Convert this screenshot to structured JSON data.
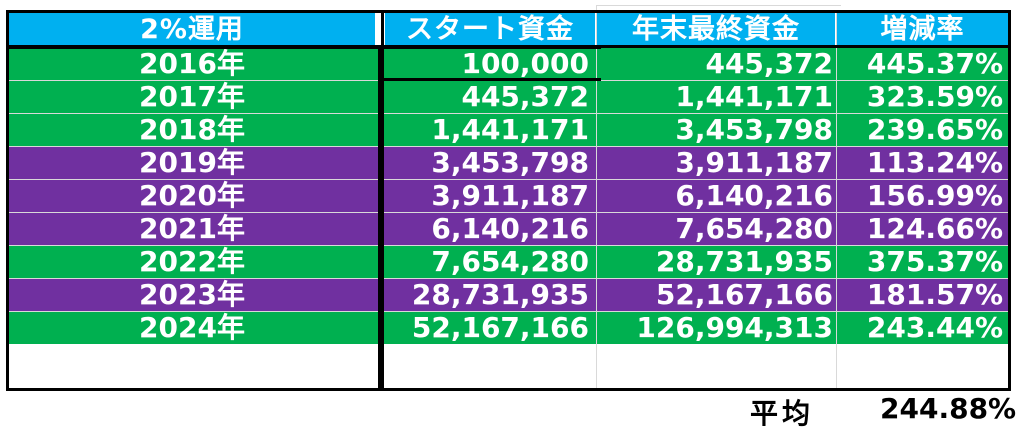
{
  "header": {
    "col_year": "2%運用",
    "col_start": "スタート資金",
    "col_end": "年末最終資金",
    "col_rate": "増減率"
  },
  "rows": [
    {
      "year": "2016年",
      "start": "100,000",
      "end": "445,372",
      "rate": "445.37%",
      "color": "green"
    },
    {
      "year": "2017年",
      "start": "445,372",
      "end": "1,441,171",
      "rate": "323.59%",
      "color": "green"
    },
    {
      "year": "2018年",
      "start": "1,441,171",
      "end": "3,453,798",
      "rate": "239.65%",
      "color": "green"
    },
    {
      "year": "2019年",
      "start": "3,453,798",
      "end": "3,911,187",
      "rate": "113.24%",
      "color": "purple"
    },
    {
      "year": "2020年",
      "start": "3,911,187",
      "end": "6,140,216",
      "rate": "156.99%",
      "color": "purple"
    },
    {
      "year": "2021年",
      "start": "6,140,216",
      "end": "7,654,280",
      "rate": "124.66%",
      "color": "purple"
    },
    {
      "year": "2022年",
      "start": "7,654,280",
      "end": "28,731,935",
      "rate": "375.37%",
      "color": "green"
    },
    {
      "year": "2023年",
      "start": "28,731,935",
      "end": "52,167,166",
      "rate": "181.57%",
      "color": "purple"
    },
    {
      "year": "2024年",
      "start": "52,167,166",
      "end": "126,994,313",
      "rate": "243.44%",
      "color": "green"
    }
  ],
  "summary": {
    "label": "平均",
    "value": "244.88%"
  },
  "colors": {
    "header_bg": "#00b0f0",
    "green": "#00b050",
    "purple": "#7030a0"
  }
}
